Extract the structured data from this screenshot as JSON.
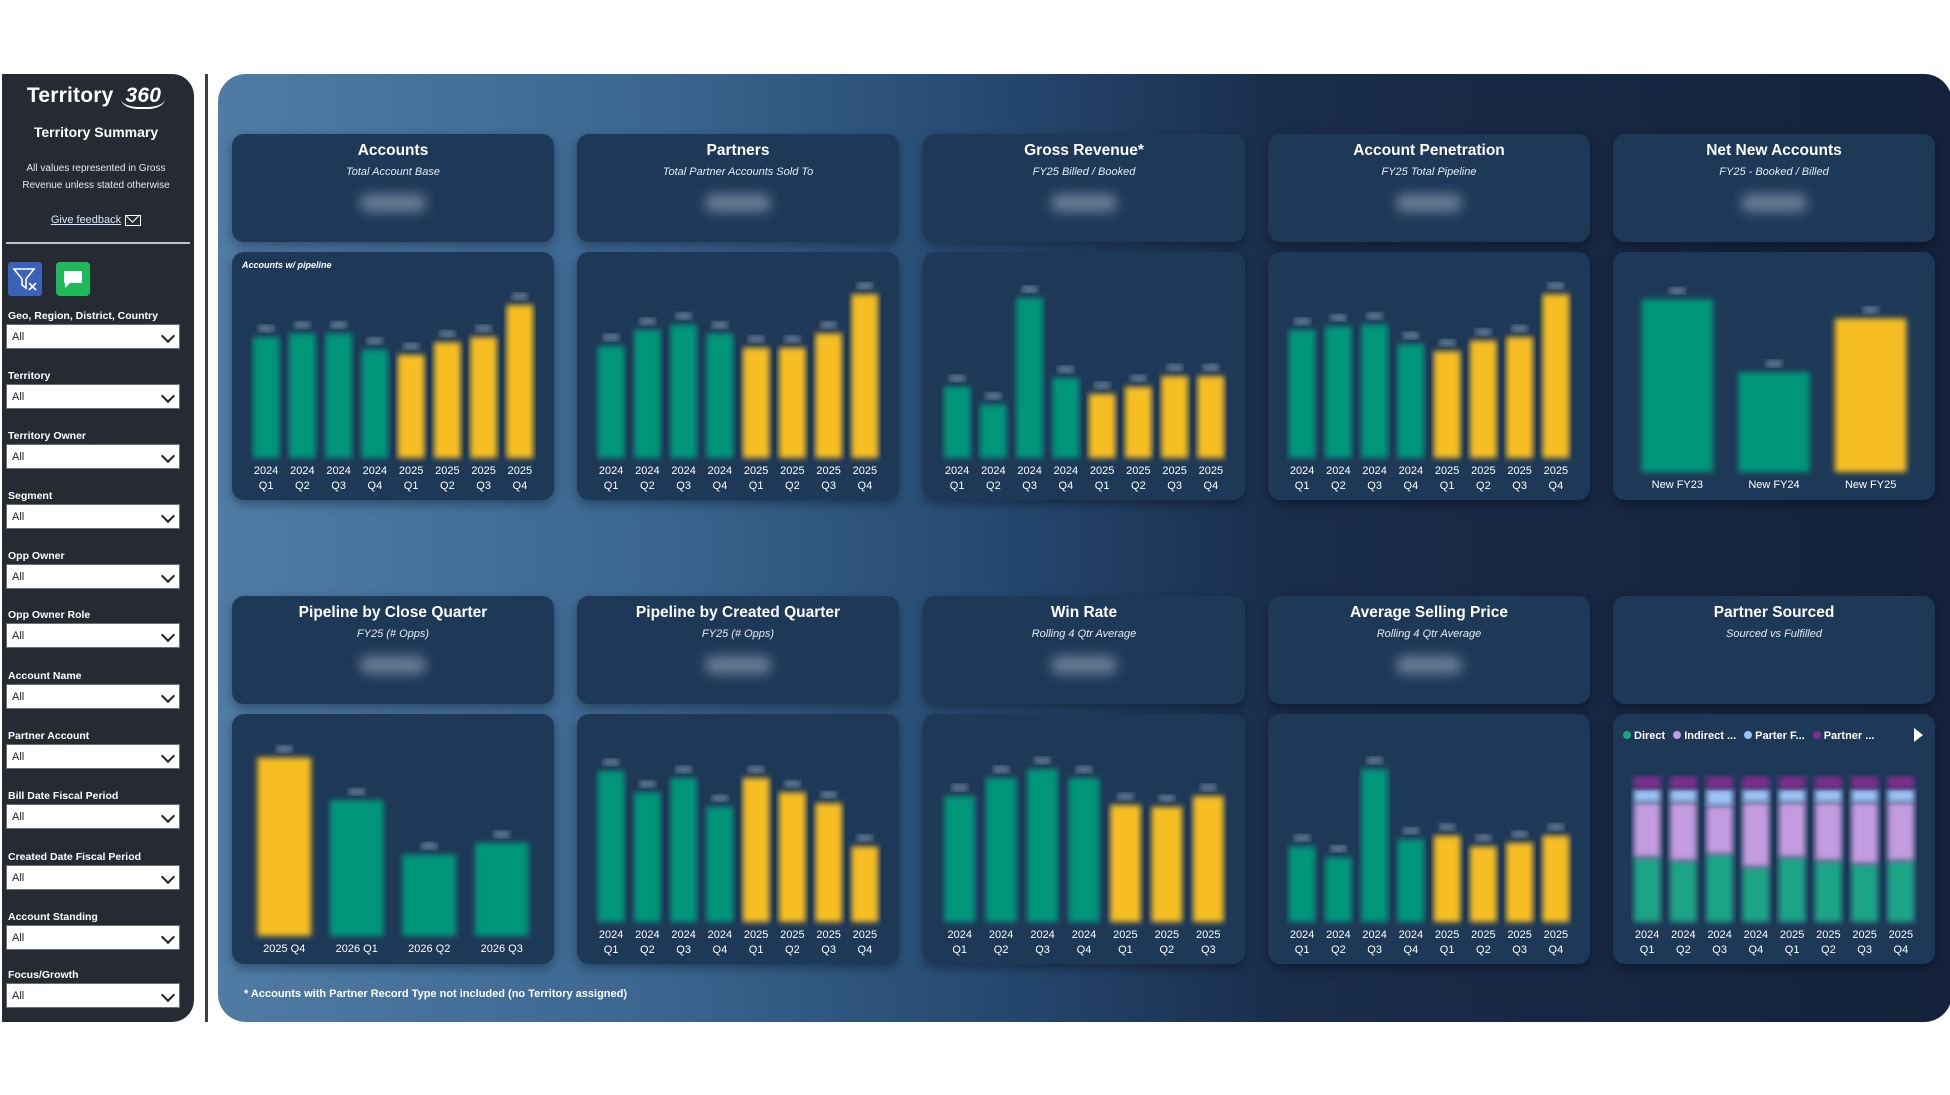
{
  "sidebar": {
    "logo_text": "Territory",
    "logo_num": "360",
    "summary_title": "Territory Summary",
    "note": "All values represented in Gross Revenue unless stated otherwise",
    "feedback_link": "Give feedback",
    "filters": [
      {
        "label": "Geo, Region, District, Country",
        "value": "All"
      },
      {
        "label": "Territory",
        "value": "All"
      },
      {
        "label": "Territory Owner",
        "value": "All"
      },
      {
        "label": "Segment",
        "value": "All"
      },
      {
        "label": "Opp Owner",
        "value": "All"
      },
      {
        "label": "Opp Owner Role",
        "value": "All"
      },
      {
        "label": "Account Name",
        "value": "All"
      },
      {
        "label": "Partner Account",
        "value": "All"
      },
      {
        "label": "Bill Date Fiscal Period",
        "value": "All"
      },
      {
        "label": "Created Date Fiscal Period",
        "value": "All"
      },
      {
        "label": "Account Standing",
        "value": "All"
      },
      {
        "label": "Focus/Growth",
        "value": "All"
      }
    ]
  },
  "colors": {
    "teal": "#00967a",
    "yellow": "#f6be20",
    "card": "#1e3858"
  },
  "cards": [
    {
      "title": "Accounts",
      "subtitle": "Total Account Base",
      "note": "Accounts w/ pipeline"
    },
    {
      "title": "Partners",
      "subtitle": "Total Partner Accounts Sold To"
    },
    {
      "title": "Gross Revenue*",
      "subtitle": "FY25 Billed / Booked"
    },
    {
      "title": "Account Penetration",
      "subtitle": "FY25 Total Pipeline"
    },
    {
      "title": "Net New Accounts",
      "subtitle": "FY25 - Booked / Billed"
    },
    {
      "title": "Pipeline by Close Quarter",
      "subtitle": "FY25  (# Opps)"
    },
    {
      "title": "Pipeline by Created Quarter",
      "subtitle": "FY25  (# Opps)"
    },
    {
      "title": "Win Rate",
      "subtitle": "Rolling 4 Qtr Average"
    },
    {
      "title": "Average Selling Price",
      "subtitle": "Rolling 4 Qtr Average"
    },
    {
      "title": "Partner Sourced",
      "subtitle": "Sourced vs Fulfilled"
    }
  ],
  "legend": {
    "items": [
      "Direct",
      "Indirect ...",
      "Parter F...",
      "Partner ..."
    ],
    "colors": [
      "#1aa486",
      "#c39be0",
      "#9cc3f5",
      "#7a2e8c"
    ]
  },
  "footnote": "* Accounts with Partner Record Type not included (no Territory assigned)",
  "chart_data": [
    {
      "type": "bar",
      "name": "accounts",
      "categories": [
        [
          "2024",
          "Q1"
        ],
        [
          "2024",
          "Q2"
        ],
        [
          "2024",
          "Q3"
        ],
        [
          "2024",
          "Q4"
        ],
        [
          "2025",
          "Q1"
        ],
        [
          "2025",
          "Q2"
        ],
        [
          "2025",
          "Q3"
        ],
        [
          "2025",
          "Q4"
        ]
      ],
      "values": [
        68,
        70,
        70,
        61,
        58,
        65,
        68,
        86
      ],
      "colors": [
        "teal",
        "teal",
        "teal",
        "teal",
        "yellow",
        "yellow",
        "yellow",
        "yellow"
      ],
      "ylim": [
        0,
        100
      ]
    },
    {
      "type": "bar",
      "name": "partners",
      "categories": [
        [
          "2024",
          "Q1"
        ],
        [
          "2024",
          "Q2"
        ],
        [
          "2024",
          "Q3"
        ],
        [
          "2024",
          "Q4"
        ],
        [
          "2025",
          "Q1"
        ],
        [
          "2025",
          "Q2"
        ],
        [
          "2025",
          "Q3"
        ],
        [
          "2025",
          "Q4"
        ]
      ],
      "values": [
        63,
        72,
        75,
        70,
        62,
        62,
        70,
        92
      ],
      "colors": [
        "teal",
        "teal",
        "teal",
        "teal",
        "yellow",
        "yellow",
        "yellow",
        "yellow"
      ],
      "ylim": [
        0,
        100
      ]
    },
    {
      "type": "bar",
      "name": "gross-revenue",
      "categories": [
        [
          "2024",
          "Q1"
        ],
        [
          "2024",
          "Q2"
        ],
        [
          "2024",
          "Q3"
        ],
        [
          "2024",
          "Q4"
        ],
        [
          "2025",
          "Q1"
        ],
        [
          "2025",
          "Q2"
        ],
        [
          "2025",
          "Q3"
        ],
        [
          "2025",
          "Q4"
        ]
      ],
      "values": [
        40,
        30,
        90,
        45,
        36,
        40,
        46,
        46
      ],
      "colors": [
        "teal",
        "teal",
        "teal",
        "teal",
        "yellow",
        "yellow",
        "yellow",
        "yellow"
      ],
      "ylim": [
        0,
        100
      ]
    },
    {
      "type": "bar",
      "name": "account-penetration",
      "categories": [
        [
          "2024",
          "Q1"
        ],
        [
          "2024",
          "Q2"
        ],
        [
          "2024",
          "Q3"
        ],
        [
          "2024",
          "Q4"
        ],
        [
          "2025",
          "Q1"
        ],
        [
          "2025",
          "Q2"
        ],
        [
          "2025",
          "Q3"
        ],
        [
          "2025",
          "Q4"
        ]
      ],
      "values": [
        72,
        74,
        75,
        64,
        60,
        66,
        68,
        92
      ],
      "colors": [
        "teal",
        "teal",
        "teal",
        "teal",
        "yellow",
        "yellow",
        "yellow",
        "yellow"
      ],
      "ylim": [
        0,
        100
      ]
    },
    {
      "type": "bar",
      "name": "net-new-accounts",
      "categories": [
        [
          "New FY23"
        ],
        [
          "New FY24"
        ],
        [
          "New FY25"
        ]
      ],
      "values": [
        90,
        52,
        80
      ],
      "colors": [
        "teal",
        "teal",
        "yellow"
      ],
      "ylim": [
        0,
        100
      ]
    },
    {
      "type": "bar",
      "name": "pipeline-close-quarter",
      "categories": [
        [
          "2025 Q4"
        ],
        [
          "2026 Q1"
        ],
        [
          "2026 Q2"
        ],
        [
          "2026 Q3"
        ]
      ],
      "values": [
        92,
        70,
        42,
        48
      ],
      "colors": [
        "yellow",
        "teal",
        "teal",
        "teal"
      ],
      "ylim": [
        0,
        100
      ]
    },
    {
      "type": "bar",
      "name": "pipeline-created-quarter",
      "categories": [
        [
          "2024",
          "Q1"
        ],
        [
          "2024",
          "Q2"
        ],
        [
          "2024",
          "Q3"
        ],
        [
          "2024",
          "Q4"
        ],
        [
          "2025",
          "Q1"
        ],
        [
          "2025",
          "Q2"
        ],
        [
          "2025",
          "Q3"
        ],
        [
          "2025",
          "Q4"
        ]
      ],
      "values": [
        84,
        72,
        80,
        64,
        80,
        72,
        66,
        42
      ],
      "colors": [
        "teal",
        "teal",
        "teal",
        "teal",
        "yellow",
        "yellow",
        "yellow",
        "yellow"
      ],
      "ylim": [
        0,
        100
      ]
    },
    {
      "type": "bar",
      "name": "win-rate",
      "categories": [
        [
          "2024",
          "Q1"
        ],
        [
          "2024",
          "Q2"
        ],
        [
          "2024",
          "Q3"
        ],
        [
          "2024",
          "Q4"
        ],
        [
          "2025",
          "Q1"
        ],
        [
          "2025",
          "Q2"
        ],
        [
          "2025",
          "Q3"
        ]
      ],
      "values": [
        70,
        80,
        85,
        80,
        65,
        64,
        70
      ],
      "colors": [
        "teal",
        "teal",
        "teal",
        "teal",
        "yellow",
        "yellow",
        "yellow"
      ],
      "ylim": [
        0,
        100
      ]
    },
    {
      "type": "bar",
      "name": "average-selling-price",
      "categories": [
        [
          "2024",
          "Q1"
        ],
        [
          "2024",
          "Q2"
        ],
        [
          "2024",
          "Q3"
        ],
        [
          "2024",
          "Q4"
        ],
        [
          "2025",
          "Q1"
        ],
        [
          "2025",
          "Q2"
        ],
        [
          "2025",
          "Q3"
        ],
        [
          "2025",
          "Q4"
        ]
      ],
      "values": [
        42,
        36,
        85,
        46,
        48,
        42,
        44,
        48
      ],
      "colors": [
        "teal",
        "teal",
        "teal",
        "teal",
        "yellow",
        "yellow",
        "yellow",
        "yellow"
      ],
      "ylim": [
        0,
        100
      ]
    },
    {
      "type": "bar",
      "name": "partner-sourced",
      "stacked": true,
      "categories": [
        [
          "2024",
          "Q1"
        ],
        [
          "2024",
          "Q2"
        ],
        [
          "2024",
          "Q3"
        ],
        [
          "2024",
          "Q4"
        ],
        [
          "2025",
          "Q1"
        ],
        [
          "2025",
          "Q2"
        ],
        [
          "2025",
          "Q3"
        ],
        [
          "2025",
          "Q4"
        ]
      ],
      "series": [
        {
          "name": "Direct",
          "values": [
            40,
            38,
            42,
            34,
            40,
            38,
            36,
            38
          ]
        },
        {
          "name": "Indirect ...",
          "values": [
            34,
            36,
            30,
            40,
            34,
            36,
            38,
            36
          ]
        },
        {
          "name": "Parter F...",
          "values": [
            8,
            8,
            10,
            8,
            8,
            8,
            8,
            8
          ]
        },
        {
          "name": "Partner ...",
          "values": [
            8,
            8,
            8,
            8,
            8,
            8,
            8,
            8
          ]
        }
      ],
      "ylim": [
        0,
        100
      ]
    }
  ]
}
